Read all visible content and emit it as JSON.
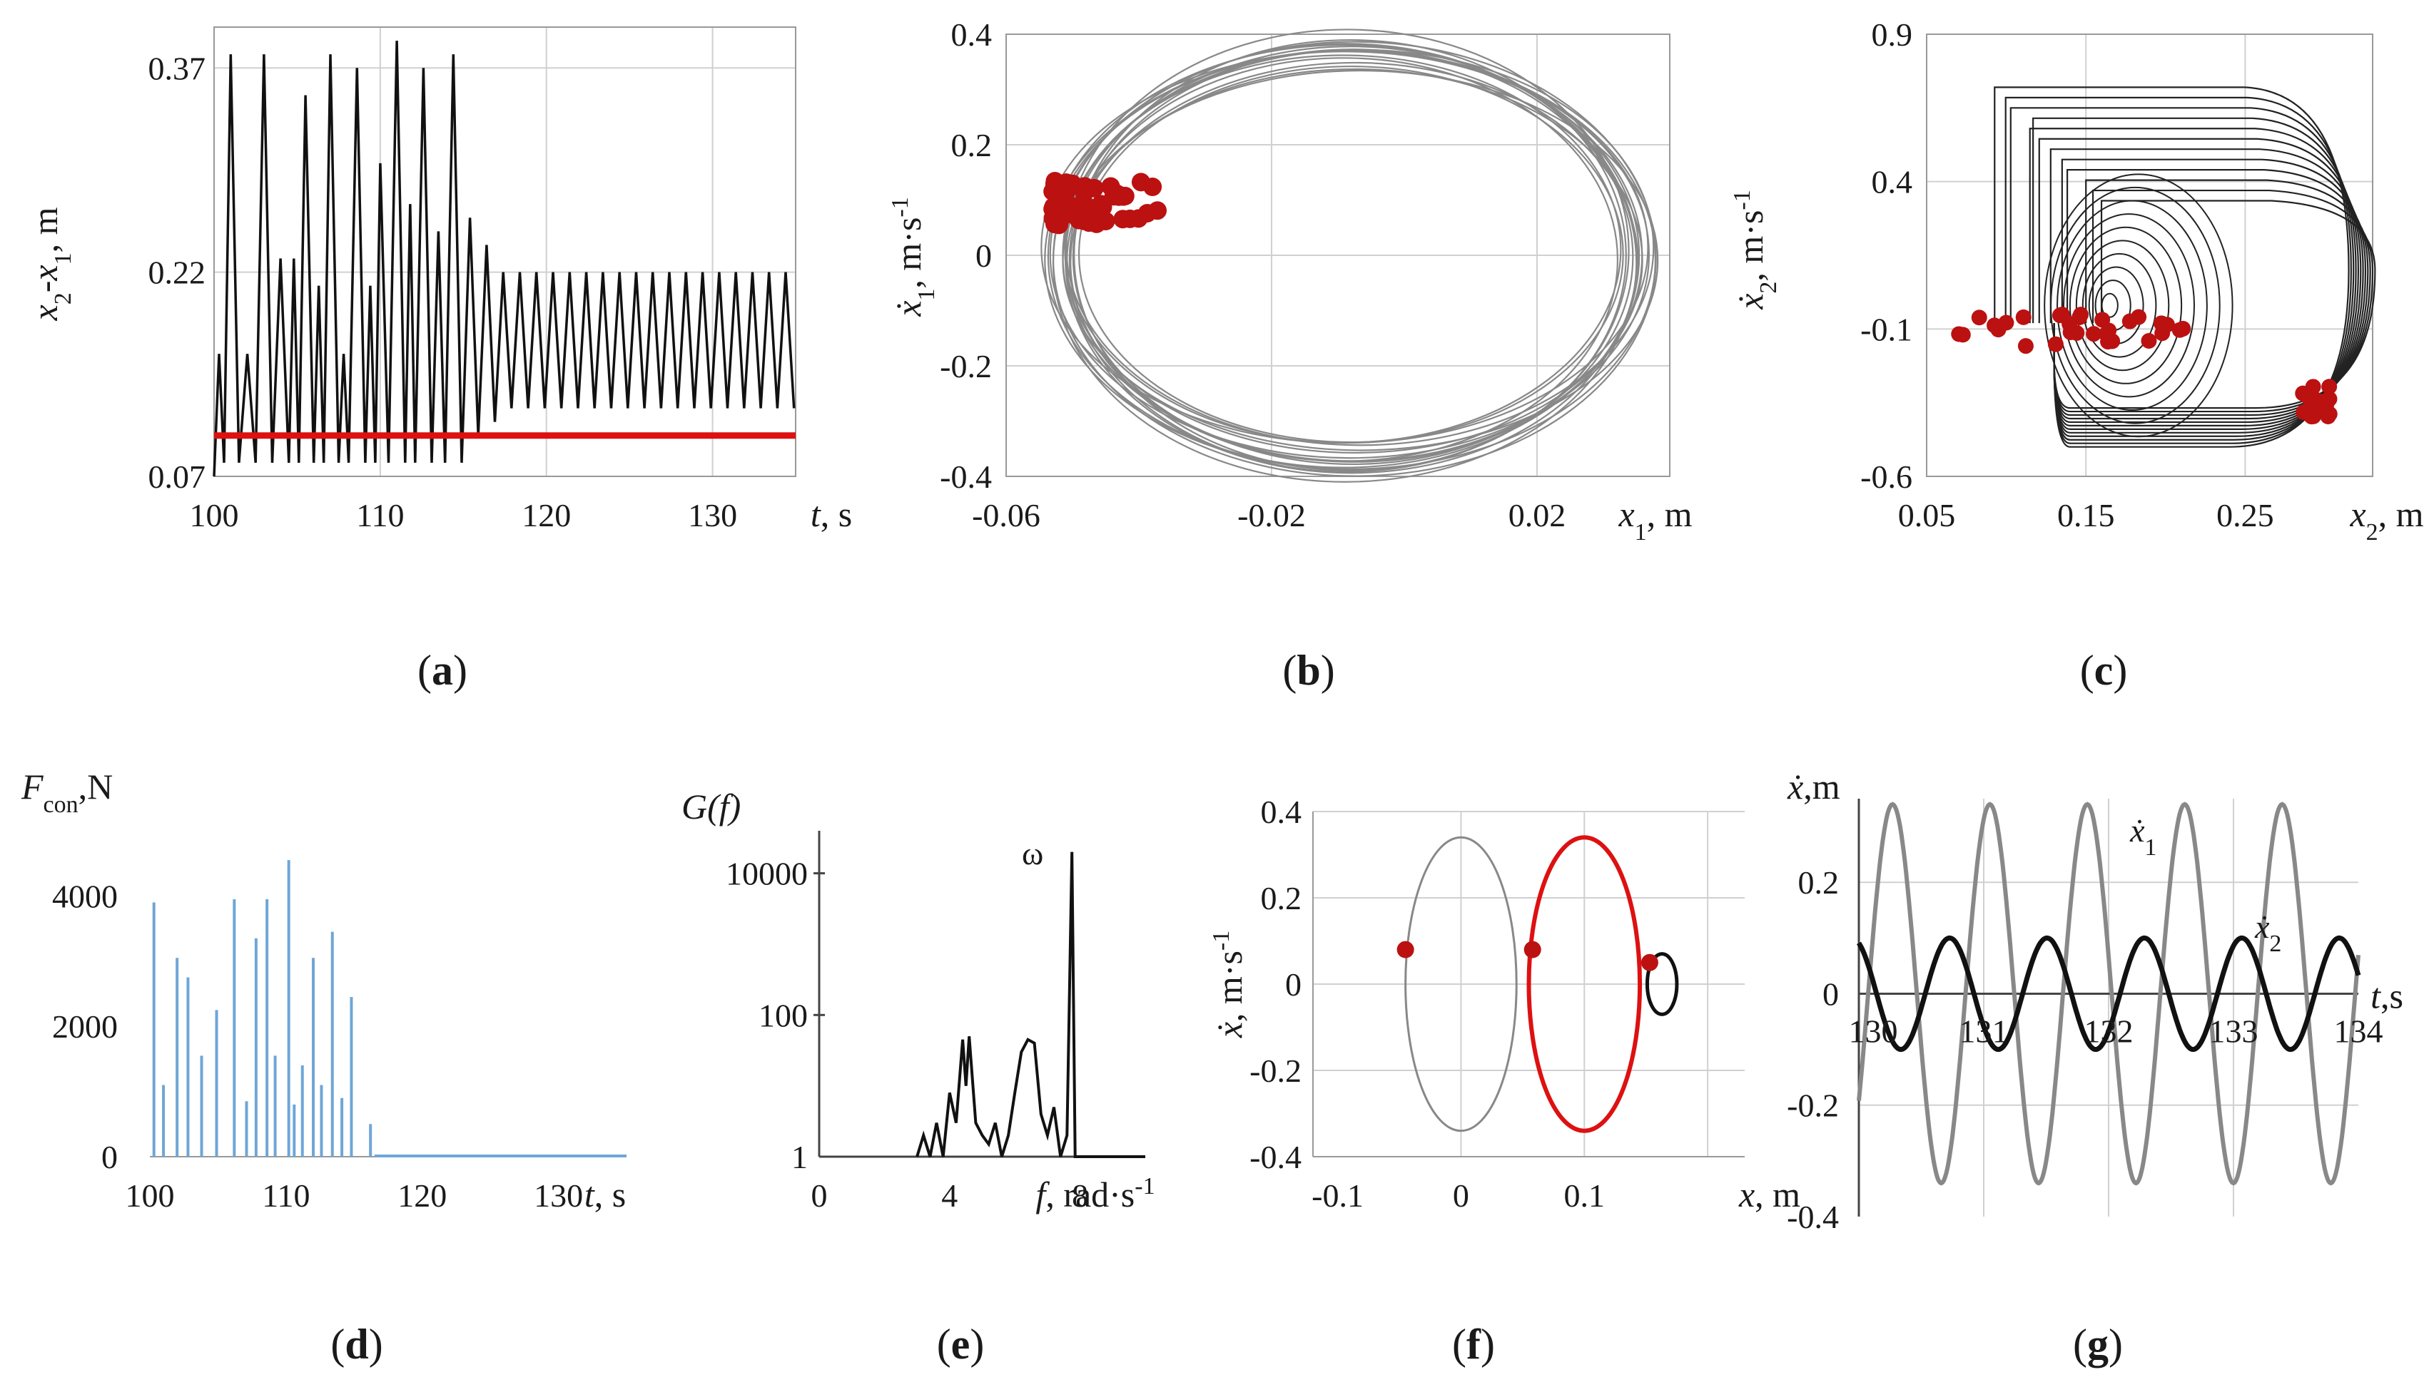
{
  "captions": [
    "a",
    "b",
    "c",
    "d",
    "e",
    "f",
    "g"
  ],
  "colors": {
    "black": "#111111",
    "gray": "#888888",
    "red": "#cc1111",
    "redpt": "#bb1111",
    "blue": "#6ea6d6",
    "grid": "#d0d0d0"
  },
  "chart_data": [
    {
      "id": "a",
      "type": "line",
      "caption": "a",
      "xticks": [
        "100",
        "110",
        "120",
        "130"
      ],
      "yticks": [
        "0.07",
        "0.22",
        "0.37"
      ],
      "xlabel": {
        "var": "t",
        "unit": ", s"
      },
      "ylabel": "x2-x1, m",
      "xlim": [
        100,
        135
      ],
      "ylim": [
        0.07,
        0.4
      ],
      "series": [
        {
          "name": "",
          "color": "#111111",
          "points": [
            [
              100,
              0.07
            ],
            [
              100.3,
              0.16
            ],
            [
              100.6,
              0.08
            ],
            [
              101,
              0.38
            ],
            [
              101.5,
              0.08
            ],
            [
              102,
              0.16
            ],
            [
              102.5,
              0.08
            ],
            [
              103,
              0.38
            ],
            [
              103.5,
              0.08
            ],
            [
              104,
              0.23
            ],
            [
              104.5,
              0.08
            ],
            [
              104.8,
              0.23
            ],
            [
              105.1,
              0.08
            ],
            [
              105.5,
              0.35
            ],
            [
              106,
              0.08
            ],
            [
              106.3,
              0.21
            ],
            [
              106.6,
              0.08
            ],
            [
              107,
              0.38
            ],
            [
              107.5,
              0.08
            ],
            [
              107.8,
              0.16
            ],
            [
              108.1,
              0.08
            ],
            [
              108.6,
              0.37
            ],
            [
              109.1,
              0.08
            ],
            [
              109.4,
              0.21
            ],
            [
              109.7,
              0.08
            ],
            [
              110,
              0.3
            ],
            [
              110.5,
              0.08
            ],
            [
              111,
              0.39
            ],
            [
              111.5,
              0.08
            ],
            [
              111.8,
              0.27
            ],
            [
              112.1,
              0.08
            ],
            [
              112.6,
              0.37
            ],
            [
              113.1,
              0.08
            ],
            [
              113.5,
              0.25
            ],
            [
              113.9,
              0.08
            ],
            [
              114.4,
              0.38
            ],
            [
              114.9,
              0.08
            ],
            [
              115.4,
              0.26
            ],
            [
              115.9,
              0.1
            ],
            [
              116.4,
              0.24
            ],
            [
              116.9,
              0.11
            ],
            [
              117.4,
              0.22
            ],
            [
              117.9,
              0.12
            ],
            [
              118.4,
              0.22
            ],
            [
              118.9,
              0.12
            ],
            [
              119.4,
              0.22
            ],
            [
              119.9,
              0.12
            ],
            [
              120.4,
              0.22
            ],
            [
              120.9,
              0.12
            ],
            [
              121.4,
              0.22
            ],
            [
              121.9,
              0.12
            ],
            [
              122.4,
              0.22
            ],
            [
              122.9,
              0.12
            ],
            [
              123.4,
              0.22
            ],
            [
              123.9,
              0.12
            ],
            [
              124.4,
              0.22
            ],
            [
              124.9,
              0.12
            ],
            [
              125.4,
              0.22
            ],
            [
              125.9,
              0.12
            ],
            [
              126.4,
              0.22
            ],
            [
              126.9,
              0.12
            ],
            [
              127.4,
              0.22
            ],
            [
              127.9,
              0.12
            ],
            [
              128.4,
              0.22
            ],
            [
              128.9,
              0.12
            ],
            [
              129.4,
              0.22
            ],
            [
              129.9,
              0.12
            ],
            [
              130.4,
              0.22
            ],
            [
              130.9,
              0.12
            ],
            [
              131.4,
              0.22
            ],
            [
              131.9,
              0.12
            ],
            [
              132.4,
              0.22
            ],
            [
              132.9,
              0.12
            ],
            [
              133.4,
              0.22
            ],
            [
              133.9,
              0.12
            ],
            [
              134.4,
              0.22
            ],
            [
              134.9,
              0.12
            ]
          ]
        },
        {
          "name": "",
          "color": "#dd1111",
          "points": [
            [
              100,
              0.1
            ],
            [
              135,
              0.1
            ]
          ]
        }
      ]
    },
    {
      "id": "b",
      "type": "scatter",
      "caption": "b",
      "xticks": [
        "-0.06",
        "-0.02",
        "0.02"
      ],
      "yticks": [
        "0.4",
        "0.2",
        "0",
        "-0.2",
        "-0.4"
      ],
      "xlabel": {
        "var": "x1",
        "unit": ", m"
      },
      "ylabel": "ẋ1, m·s-1",
      "xlim": [
        -0.06,
        0.04
      ],
      "ylim": [
        -0.4,
        0.4
      ],
      "orbits": {
        "cx": -0.008,
        "cy": 0.0,
        "rx_range": [
          0.041,
          0.046
        ],
        "ry_range": [
          0.34,
          0.4
        ],
        "count": 18,
        "color": "#888888"
      },
      "points": {
        "x_range": [
          -0.053,
          -0.036
        ],
        "y_range": [
          0.055,
          0.135
        ],
        "count": 55,
        "color": "#bb1111"
      }
    },
    {
      "id": "c",
      "type": "scatter",
      "caption": "c",
      "xticks": [
        "0.05",
        "0.15",
        "0.25"
      ],
      "yticks": [
        "0.9",
        "0.4",
        "-0.1",
        "-0.6"
      ],
      "xlabel": {
        "var": "x2",
        "unit": ", m"
      },
      "ylabel": "ẋ2, m·s-1",
      "xlim": [
        0.05,
        0.33
      ],
      "ylim": [
        -0.6,
        0.9
      ],
      "points_left": {
        "x_range": [
          0.065,
          0.215
        ],
        "y_range": [
          -0.16,
          -0.05
        ],
        "count": 30
      },
      "points_right": {
        "x_range": [
          0.285,
          0.305
        ],
        "y_range": [
          -0.4,
          -0.29
        ],
        "count": 20
      }
    },
    {
      "id": "d",
      "type": "bar",
      "caption": "d",
      "xticks": [
        "100",
        "110",
        "120",
        "130"
      ],
      "yticks": [
        "0",
        "2000",
        "4000"
      ],
      "xlabel": {
        "var": "t",
        "unit": ", s"
      },
      "ylabel": {
        "var": "F",
        "sub": "con",
        "unit": ",N"
      },
      "xlim": [
        100,
        135
      ],
      "ylim": [
        0,
        5000
      ],
      "x": [
        100.3,
        101,
        102,
        102.8,
        103.8,
        104.9,
        106.2,
        107.1,
        107.8,
        108.6,
        109.2,
        110.2,
        110.6,
        111.2,
        112.0,
        112.6,
        113.4,
        114.1,
        114.8,
        116.2
      ],
      "values": [
        3900,
        1100,
        3050,
        2750,
        1550,
        2250,
        3950,
        850,
        3350,
        3950,
        1550,
        4550,
        800,
        1400,
        3050,
        1100,
        3450,
        900,
        2450,
        500
      ]
    },
    {
      "id": "e",
      "type": "line",
      "caption": "e",
      "xticks": [
        "0",
        "4",
        "8"
      ],
      "yticks": [
        "1",
        "100",
        "10000"
      ],
      "xlabel": {
        "var": "f",
        "unit": ", rad·s-1"
      },
      "ylabel": "G(f)",
      "annotation": "ω",
      "xlim": [
        0,
        10
      ],
      "ylim_log10": [
        0,
        4.6
      ],
      "series": [
        {
          "name": "",
          "color": "#111111",
          "points": [
            [
              3,
              1
            ],
            [
              3.2,
              2
            ],
            [
              3.4,
              1
            ],
            [
              3.6,
              3
            ],
            [
              3.8,
              1
            ],
            [
              4,
              8
            ],
            [
              4.2,
              3
            ],
            [
              4.4,
              45
            ],
            [
              4.5,
              10
            ],
            [
              4.6,
              50
            ],
            [
              4.8,
              3
            ],
            [
              5,
              2
            ],
            [
              5.2,
              1.5
            ],
            [
              5.4,
              3
            ],
            [
              5.6,
              1
            ],
            [
              5.8,
              2
            ],
            [
              6,
              8
            ],
            [
              6.2,
              30
            ],
            [
              6.4,
              45
            ],
            [
              6.6,
              40
            ],
            [
              6.8,
              4
            ],
            [
              7,
              2
            ],
            [
              7.2,
              5
            ],
            [
              7.4,
              1
            ],
            [
              7.6,
              2
            ],
            [
              7.75,
              20000
            ],
            [
              7.85,
              1
            ],
            [
              10,
              1
            ]
          ]
        }
      ]
    },
    {
      "id": "f",
      "type": "line",
      "caption": "f",
      "xticks": [
        "-0.1",
        "0",
        "0.1"
      ],
      "yticks": [
        "0.4",
        "0.2",
        "0",
        "-0.2",
        "-0.4"
      ],
      "xlabel": {
        "var": "x",
        "unit": ", m"
      },
      "ylabel": "ẋ, m·s-1",
      "xlim": [
        -0.12,
        0.23
      ],
      "ylim": [
        -0.4,
        0.4
      ],
      "ellipses": [
        {
          "cx": 0,
          "cy": 0,
          "rx": 0.045,
          "ry": 0.34,
          "color": "#888888",
          "width": 3
        },
        {
          "cx": 0.1,
          "cy": 0,
          "rx": 0.045,
          "ry": 0.34,
          "color": "#dd1111",
          "width": 6
        },
        {
          "cx": 0.163,
          "cy": 0,
          "rx": 0.012,
          "ry": 0.07,
          "color": "#111111",
          "width": 5
        }
      ],
      "points": [
        [
          -0.045,
          0.08
        ],
        [
          0.058,
          0.08
        ],
        [
          0.153,
          0.05
        ]
      ]
    },
    {
      "id": "g",
      "type": "line",
      "caption": "g",
      "xticks": [
        "130",
        "131",
        "132",
        "133",
        "134"
      ],
      "yticks": [
        "0.2",
        "0",
        "-0.2",
        "-0.4"
      ],
      "xlabel": {
        "var": "t",
        "unit": ",s"
      },
      "ylabel": {
        "var": "ẋ",
        "unit": ",m"
      },
      "xlim": [
        130,
        134
      ],
      "ylim": [
        -0.4,
        0.35
      ],
      "series": [
        {
          "name": "ẋ1",
          "color": "#888888",
          "amplitude": 0.34,
          "period": 0.78,
          "phase": -0.6
        },
        {
          "name": "ẋ2",
          "color": "#111111",
          "amplitude": 0.1,
          "period": 0.78,
          "phase": 2.0
        }
      ]
    }
  ]
}
